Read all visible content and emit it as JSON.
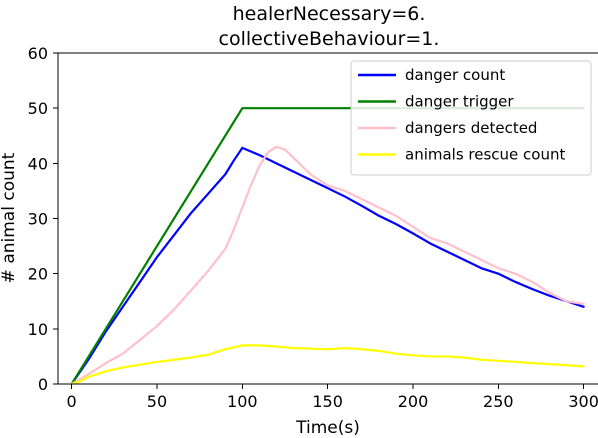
{
  "chart_data": {
    "type": "line",
    "title_lines": [
      "healerNecessary=6.",
      "collectiveBehaviour=1."
    ],
    "xlabel": "Time(s)",
    "ylabel": "# animal count",
    "xlim": [
      -8,
      309
    ],
    "ylim": [
      0,
      60
    ],
    "xticks": [
      0,
      50,
      100,
      150,
      200,
      250,
      300
    ],
    "yticks": [
      0,
      10,
      20,
      30,
      40,
      50,
      60
    ],
    "grid": false,
    "legend_position": "top-right",
    "series": [
      {
        "name": "danger count",
        "color": "#0000ff",
        "x": [
          0,
          10,
          20,
          30,
          40,
          50,
          60,
          70,
          80,
          90,
          95,
          100,
          110,
          120,
          130,
          140,
          150,
          160,
          170,
          180,
          190,
          200,
          210,
          220,
          230,
          240,
          250,
          260,
          270,
          280,
          290,
          300
        ],
        "y": [
          0,
          4.5,
          9.5,
          14,
          18.5,
          23,
          27,
          31,
          34.5,
          38,
          40.5,
          42.8,
          41.5,
          40,
          38.5,
          37,
          35.5,
          34,
          32.3,
          30.5,
          29,
          27.3,
          25.5,
          24,
          22.5,
          21,
          20,
          18.5,
          17.2,
          16,
          15,
          14
        ]
      },
      {
        "name": "danger trigger",
        "color": "#008000",
        "x": [
          0,
          100,
          300
        ],
        "y": [
          0,
          50,
          50
        ]
      },
      {
        "name": "dangers detected",
        "color": "#ffc0cb",
        "x": [
          0,
          10,
          20,
          30,
          40,
          50,
          60,
          70,
          80,
          90,
          95,
          100,
          105,
          110,
          115,
          120,
          125,
          130,
          140,
          150,
          160,
          170,
          180,
          190,
          200,
          210,
          220,
          230,
          240,
          250,
          260,
          270,
          280,
          290,
          300
        ],
        "y": [
          0,
          1.8,
          3.8,
          5.5,
          8,
          10.5,
          13.5,
          17,
          20.5,
          24.5,
          28,
          32,
          36,
          39.5,
          42,
          43,
          42.5,
          41,
          38,
          36,
          35,
          33.5,
          32,
          30.5,
          28.5,
          26.5,
          25.5,
          24,
          22.5,
          21,
          20,
          18.5,
          16.5,
          15,
          14.5
        ]
      },
      {
        "name": "animals rescue count",
        "color": "#ffff00",
        "x": [
          0,
          5,
          10,
          20,
          30,
          40,
          50,
          60,
          70,
          80,
          90,
          100,
          110,
          120,
          130,
          140,
          150,
          160,
          170,
          180,
          190,
          200,
          210,
          220,
          230,
          240,
          250,
          260,
          270,
          280,
          290,
          300
        ],
        "y": [
          0,
          0.5,
          1.3,
          2.3,
          3,
          3.5,
          4,
          4.4,
          4.8,
          5.3,
          6.3,
          7,
          7,
          6.8,
          6.5,
          6.4,
          6.3,
          6.5,
          6.3,
          6,
          5.5,
          5.2,
          5,
          5,
          4.8,
          4.4,
          4.2,
          4,
          3.8,
          3.6,
          3.4,
          3.2
        ]
      }
    ]
  }
}
